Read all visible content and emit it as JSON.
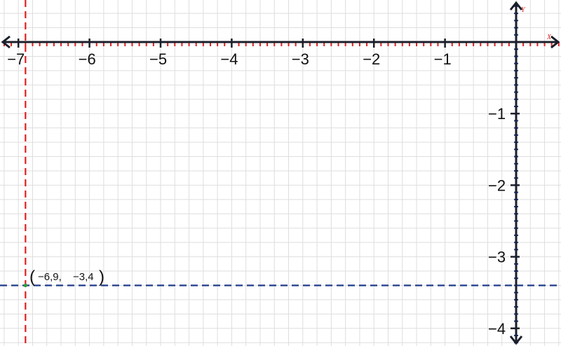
{
  "plane": {
    "x_range": [
      -7.2,
      0.65
    ],
    "y_range": [
      -4.2,
      0.55
    ],
    "grid_step": 0.2,
    "x_ticks": [
      "−7",
      "−6",
      "−5",
      "−4",
      "−3",
      "−2",
      "−1"
    ],
    "y_ticks": [
      "−1",
      "−2",
      "−3",
      "−4"
    ],
    "x_axis_name": "X",
    "y_axis_name": "Y",
    "colors": {
      "grid": "#dedede",
      "axis": "#1b1f2a",
      "x_ticks": "#e02020",
      "y_ticks": "#1f3a8a",
      "vertical_guide": "#e02020",
      "horizontal_guide": "#1f3a8a",
      "point": "#2e9e3a"
    }
  },
  "point": {
    "x": -6.9,
    "y": -3.4,
    "label_x": "−6,9,",
    "label_y": "−3,4",
    "paren_open": "(",
    "paren_close": ")"
  }
}
